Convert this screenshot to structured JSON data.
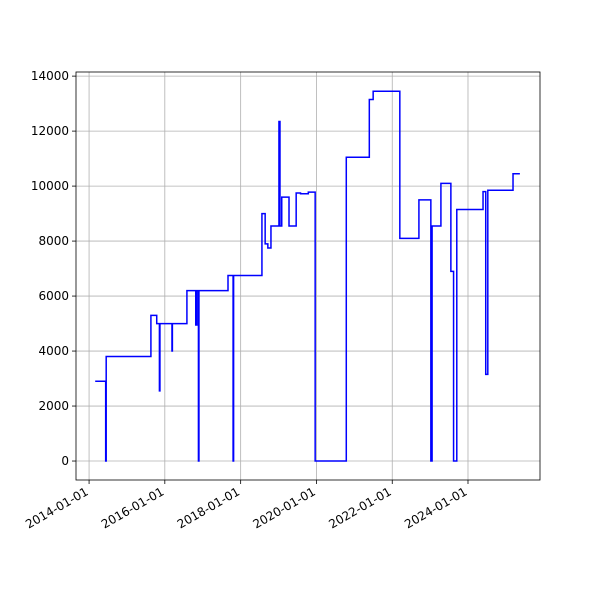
{
  "chart_data": {
    "type": "line",
    "drawstyle": "steps-post",
    "x": [
      "2014-03-01",
      "2014-06-10",
      "2014-06-15",
      "2015-08-20",
      "2015-10-15",
      "2015-11-10",
      "2015-11-15",
      "2016-03-10",
      "2016-03-14",
      "2016-08-01",
      "2016-10-25",
      "2016-11-05",
      "2016-11-20",
      "2016-11-25",
      "2017-09-01",
      "2017-10-20",
      "2017-10-25",
      "2018-07-25",
      "2018-08-25",
      "2018-09-20",
      "2018-10-20",
      "2019-01-05",
      "2019-01-15",
      "2019-02-01",
      "2019-04-12",
      "2019-06-20",
      "2019-08-01",
      "2019-10-15",
      "2019-12-20",
      "2020-10-15",
      "2021-05-25",
      "2021-07-01",
      "2022-03-15",
      "2022-09-15",
      "2023-01-08",
      "2023-01-20",
      "2023-04-15",
      "2023-07-20",
      "2023-08-15",
      "2023-09-15",
      "2024-05-25",
      "2024-06-20",
      "2024-07-10",
      "2025-03-10",
      "2025-05-15"
    ],
    "series": [
      {
        "color": "#0000ff",
        "values": [
          2900,
          0,
          3800,
          5300,
          5000,
          2550,
          5000,
          4000,
          5000,
          6200,
          4950,
          6200,
          0,
          6200,
          6750,
          0,
          6750,
          9000,
          7900,
          7750,
          8550,
          12350,
          8550,
          9600,
          8550,
          9750,
          9720,
          9780,
          0,
          11050,
          13150,
          13450,
          8100,
          9500,
          0,
          8550,
          10100,
          6900,
          0,
          9150,
          9800,
          3150,
          9850,
          10450,
          10450
        ]
      }
    ],
    "xlim": [
      "2013-08-28",
      "2025-11-25"
    ],
    "xticks": [
      "2014-01-01",
      "2016-01-01",
      "2018-01-01",
      "2020-01-01",
      "2022-01-01",
      "2024-01-01"
    ],
    "ylim": [
      -690,
      14150
    ],
    "yticks": [
      0,
      2000,
      4000,
      6000,
      8000,
      10000,
      12000,
      14000
    ],
    "grid": true
  }
}
